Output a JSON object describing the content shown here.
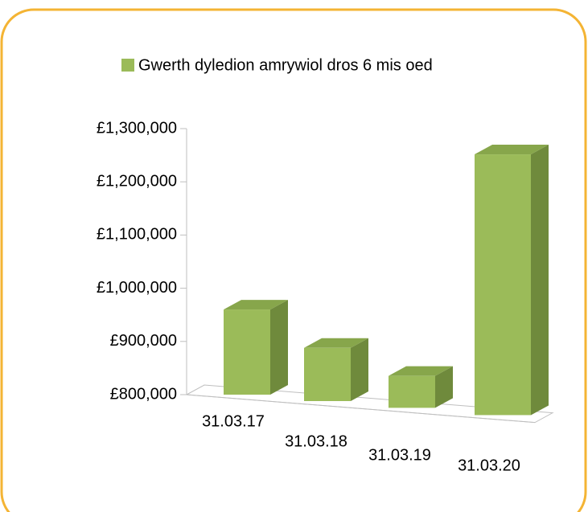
{
  "chart_data": {
    "type": "bar3d",
    "series": [
      {
        "name": "Gwerth dyledion amrywiol dros 6 mis oed",
        "color": "#9bbb59",
        "values": [
          960000,
          900000,
          860000,
          1290000
        ]
      }
    ],
    "categories": [
      "31.03.17",
      "31.03.18",
      "31.03.19",
      "31.03.20"
    ],
    "ylim": [
      800000,
      1300000
    ],
    "yticks": [
      {
        "value": 800000,
        "label": "£800,000"
      },
      {
        "value": 900000,
        "label": "£900,000"
      },
      {
        "value": 1000000,
        "label": "£1,000,000"
      },
      {
        "value": 1100000,
        "label": "£1,100,000"
      },
      {
        "value": 1200000,
        "label": "£1,200,000"
      },
      {
        "value": 1300000,
        "label": "£1,300,000"
      }
    ],
    "legend": "top"
  }
}
